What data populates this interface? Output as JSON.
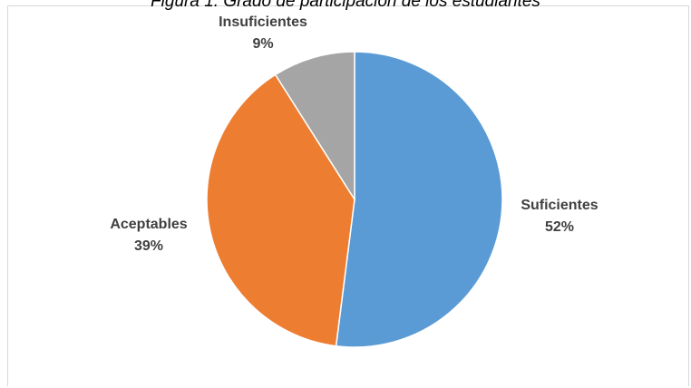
{
  "caption": "Figura 1. Grado de participación de los estudiantes",
  "chart_data": {
    "type": "pie",
    "title": "",
    "start_angle_deg": 0,
    "direction": "clockwise",
    "slices": [
      {
        "label": "Suficientes",
        "value": 52,
        "value_label": "52%",
        "color": "#5b9bd5"
      },
      {
        "label": "Aceptables",
        "value": 39,
        "value_label": "39%",
        "color": "#ed7d31"
      },
      {
        "label": "Insuficientes",
        "value": 9,
        "value_label": "9%",
        "color": "#a5a5a5"
      }
    ]
  }
}
